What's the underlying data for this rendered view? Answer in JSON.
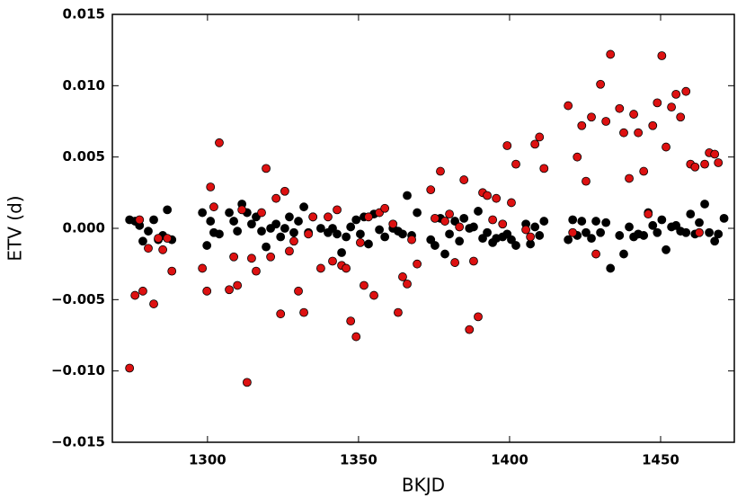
{
  "chart_data": {
    "type": "scatter",
    "xlabel": "BKJD",
    "ylabel": "ETV (d)",
    "xlim": [
      1268.5,
      1474.4
    ],
    "ylim": [
      -0.015,
      0.015
    ],
    "xticks": [
      1300,
      1350,
      1400,
      1450
    ],
    "yticks": [
      {
        "value": -0.015,
        "label": "−0.015"
      },
      {
        "value": -0.01,
        "label": "−0.010"
      },
      {
        "value": -0.005,
        "label": "−0.005"
      },
      {
        "value": 0,
        "label": "0.000"
      },
      {
        "value": 0.005,
        "label": "0.005"
      },
      {
        "value": 0.01,
        "label": "0.010"
      },
      {
        "value": 0.015,
        "label": "0.015"
      }
    ],
    "x": [
      1274.2,
      1276,
      1277.5,
      1278.6,
      1280.4,
      1282.2,
      1283.7,
      1285.2,
      1286.7,
      1288.2,
      1298.3,
      1299.8,
      1301,
      1302.1,
      1303.9,
      1307.2,
      1308.7,
      1309.9,
      1311.4,
      1313.1,
      1314.6,
      1316.1,
      1317.9,
      1319.4,
      1320.9,
      1322.7,
      1324.2,
      1325.6,
      1327.1,
      1328.6,
      1330.1,
      1331.9,
      1333.4,
      1334.9,
      1337.5,
      1339.9,
      1341.4,
      1342.9,
      1344.4,
      1345.9,
      1347.4,
      1349.2,
      1350.6,
      1351.8,
      1353.3,
      1355.1,
      1356.9,
      1358.7,
      1361.4,
      1363.1,
      1364.6,
      1366.1,
      1367.6,
      1369.4,
      1373.9,
      1375.3,
      1377.1,
      1378.6,
      1380.1,
      1381.9,
      1383.4,
      1384.9,
      1386.7,
      1388.1,
      1389.6,
      1391.1,
      1392.6,
      1394.4,
      1395.6,
      1397.7,
      1399.2,
      1400.6,
      1402.1,
      1405.4,
      1406.9,
      1408.4,
      1409.9,
      1411.4,
      1419.4,
      1420.9,
      1422.4,
      1423.9,
      1425.3,
      1427.1,
      1428.6,
      1430.1,
      1431.9,
      1433.4,
      1436.4,
      1437.8,
      1439.6,
      1441.1,
      1442.6,
      1444.4,
      1445.9,
      1447.4,
      1448.9,
      1450.4,
      1451.8,
      1453.6,
      1455.1,
      1456.6,
      1458.4,
      1459.9,
      1461.4,
      1462.8,
      1464.6,
      1466.1,
      1467.9,
      1469.1,
      1471
    ],
    "series": [
      {
        "color": "#000000",
        "values": [
          0.0006,
          0.0005,
          0.0002,
          -0.0009,
          -0.0002,
          0.0006,
          -0.0008,
          -0.0005,
          0.0013,
          -0.0008,
          0.0011,
          -0.0012,
          0.0005,
          -0.0003,
          -0.0004,
          0.0011,
          0.0005,
          -0.0002,
          0.0017,
          0.0011,
          0.0003,
          0.0008,
          -0.0002,
          -0.0013,
          0,
          0.0003,
          -0.0006,
          0,
          0.0008,
          -0.0003,
          0.0005,
          0.0015,
          -0.0003,
          0.0008,
          0,
          -0.0003,
          0,
          -0.0004,
          -0.0017,
          -0.0006,
          0.0001,
          0.0006,
          -0.0004,
          0.0008,
          -0.0011,
          0.001,
          -0.0001,
          -0.0006,
          0,
          -0.0002,
          -0.0004,
          0.0023,
          -0.0005,
          0.0011,
          -0.0008,
          -0.0012,
          0.0007,
          -0.0018,
          -0.0004,
          0.0005,
          -0.0009,
          0.0007,
          0,
          0.0001,
          0.0012,
          -0.0007,
          -0.0003,
          -0.001,
          -0.0007,
          -0.0006,
          -0.0004,
          -0.0008,
          -0.0012,
          0.0003,
          -0.0011,
          0.0001,
          -0.0005,
          0.0005,
          -0.0008,
          0.0006,
          -0.0005,
          0.0005,
          -0.0003,
          -0.0007,
          0.0005,
          -0.0003,
          0.0004,
          -0.0028,
          -0.0005,
          -0.0018,
          0.0001,
          -0.0006,
          -0.0004,
          -0.0005,
          0.0011,
          0.0002,
          -0.0003,
          0.0006,
          -0.0015,
          0.0001,
          0.0002,
          -0.0002,
          -0.0003,
          0.001,
          -0.0004,
          0.0004,
          0.0017,
          -0.0003,
          -0.0009,
          -0.0004,
          0.0007
        ]
      },
      {
        "color": "#dd1111",
        "values": [
          -0.0098,
          -0.0047,
          0.0006,
          -0.0044,
          -0.0014,
          -0.0053,
          -0.0007,
          -0.0015,
          -0.0007,
          -0.003,
          -0.0028,
          -0.0044,
          0.0029,
          0.0015,
          0.006,
          -0.0043,
          -0.002,
          -0.004,
          0.0013,
          -0.0108,
          -0.0021,
          -0.003,
          0.0011,
          0.0042,
          -0.002,
          0.0021,
          -0.006,
          0.0026,
          -0.0016,
          -0.0009,
          -0.0044,
          -0.0059,
          -0.0004,
          0.0008,
          -0.0028,
          0.0008,
          -0.0023,
          0.0013,
          -0.0026,
          -0.0028,
          -0.0065,
          -0.0076,
          -0.001,
          -0.004,
          0.0008,
          -0.0047,
          0.0011,
          0.0014,
          0.0003,
          -0.0059,
          -0.0034,
          -0.0039,
          -0.0008,
          -0.0025,
          0.0027,
          0.0007,
          0.004,
          0.0005,
          0.001,
          -0.0024,
          0.0001,
          0.0034,
          -0.0071,
          -0.0023,
          -0.0062,
          0.0025,
          0.0023,
          0.0006,
          0.0021,
          0.0003,
          0.0058,
          0.0018,
          0.0045,
          -0.0001,
          -0.0006,
          0.0059,
          0.0064,
          0.0042,
          0.0086,
          -0.0003,
          0.005,
          0.0072,
          0.0033,
          0.0078,
          -0.0018,
          0.0101,
          0.0075,
          0.0122,
          0.0084,
          0.0067,
          0.0035,
          0.008,
          0.0067,
          0.004,
          0.001,
          0.0072,
          0.0088,
          0.0121,
          0.0057,
          0.0085,
          0.0094,
          0.0078,
          0.0096,
          0.0045,
          0.0043,
          -0.0003,
          0.0045,
          0.0053,
          0.0052,
          0.0046,
          null
        ]
      }
    ]
  }
}
